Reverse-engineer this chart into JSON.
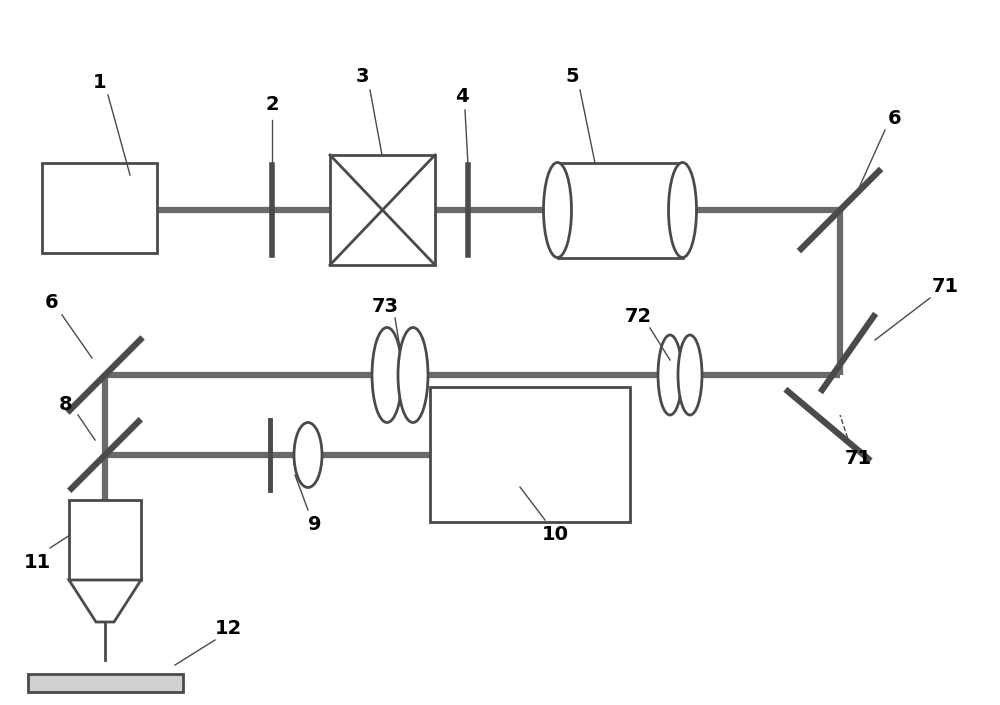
{
  "bg_color": "#ffffff",
  "line_color": "#4a4a4a",
  "beam_color": "#6a6a6a",
  "label_color": "#000000",
  "figsize": [
    10.0,
    7.05
  ],
  "dpi": 100
}
